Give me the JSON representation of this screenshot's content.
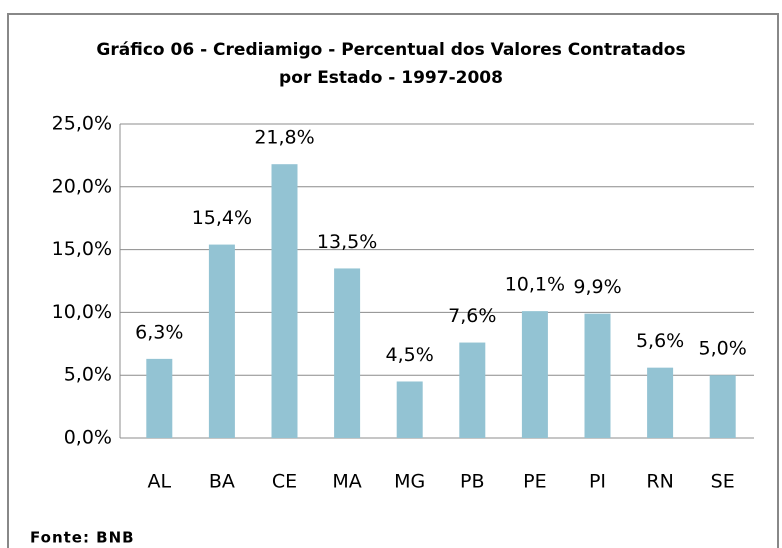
{
  "chart_data": {
    "type": "bar",
    "title": [
      "Gráfico 06 - Crediamigo - Percentual dos Valores Contratados",
      "por Estado - 1997-2008"
    ],
    "categories": [
      "AL",
      "BA",
      "CE",
      "MA",
      "MG",
      "PB",
      "PE",
      "PI",
      "RN",
      "SE"
    ],
    "values": [
      6.3,
      15.4,
      21.8,
      13.5,
      4.5,
      7.6,
      10.1,
      9.9,
      5.6,
      5.0
    ],
    "value_labels": [
      "6,3%",
      "15,4%",
      "21,8%",
      "13,5%",
      "4,5%",
      "7,6%",
      "10,1%",
      "9,9%",
      "5,6%",
      "5,0%"
    ],
    "color": "#93c3d3",
    "ylim": [
      0,
      25
    ],
    "yticks": [
      {
        "value": 0,
        "label": "0,0%"
      },
      {
        "value": 5,
        "label": "5,0%"
      },
      {
        "value": 10,
        "label": "10,0%"
      },
      {
        "value": 15,
        "label": "15,0%"
      },
      {
        "value": 20,
        "label": "20,0%"
      },
      {
        "value": 25,
        "label": "25,0%"
      }
    ],
    "grid": true
  },
  "source": "Fonte: BNB"
}
